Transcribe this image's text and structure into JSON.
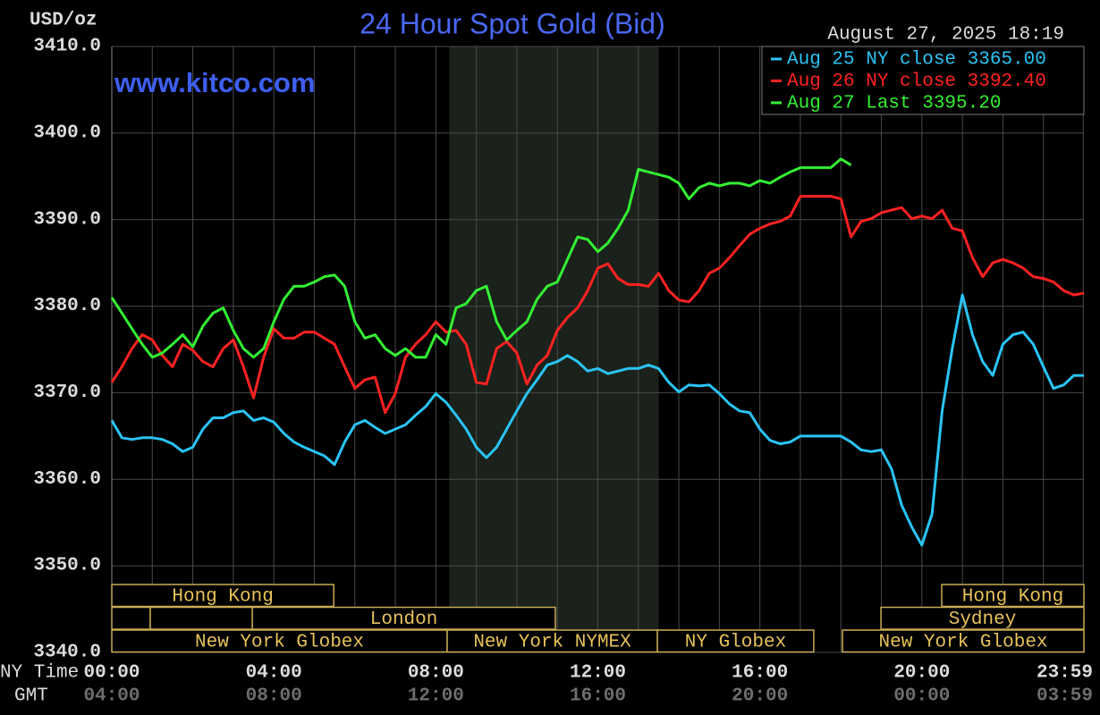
{
  "chart_data": {
    "type": "line",
    "title": "24 Hour Spot Gold (Bid)",
    "watermark": "www.kitco.com",
    "timestamp": "August 27, 2025 18:19",
    "ylabel": "USD/oz",
    "xlabel": "NY Time",
    "x2label": "GMT",
    "xlim": [
      0,
      24
    ],
    "ylim": [
      3340,
      3410
    ],
    "yticks": [
      {
        "value": 3340,
        "label": "3340.0"
      },
      {
        "value": 3350,
        "label": "3350.0"
      },
      {
        "value": 3360,
        "label": "3360.0"
      },
      {
        "value": 3370,
        "label": "3370.0"
      },
      {
        "value": 3380,
        "label": "3380.0"
      },
      {
        "value": 3390,
        "label": "3390.0"
      },
      {
        "value": 3400,
        "label": "3400.0"
      },
      {
        "value": 3410,
        "label": "3410.0"
      }
    ],
    "xticks": [
      {
        "value": 0,
        "label": "00:00"
      },
      {
        "value": 4,
        "label": "04:00"
      },
      {
        "value": 8,
        "label": "08:00"
      },
      {
        "value": 12,
        "label": "12:00"
      },
      {
        "value": 16,
        "label": "16:00"
      },
      {
        "value": 20,
        "label": "20:00"
      },
      {
        "value": 23.983,
        "label": "23:59"
      }
    ],
    "x2ticks": [
      {
        "value": 0,
        "label": "04:00"
      },
      {
        "value": 4,
        "label": "08:00"
      },
      {
        "value": 8,
        "label": "12:00"
      },
      {
        "value": 12,
        "label": "16:00"
      },
      {
        "value": 16,
        "label": "20:00"
      },
      {
        "value": 20,
        "label": "00:00"
      },
      {
        "value": 23.983,
        "label": "03:59"
      }
    ],
    "x_minor_ticks": [
      1,
      2,
      3,
      5,
      6,
      7,
      9,
      10,
      11,
      13,
      14,
      15,
      17,
      18,
      19,
      21,
      22,
      23
    ],
    "grid": true,
    "shaded_x": [
      8.33,
      13.5
    ],
    "legend": "top-right",
    "session_rows": [
      [
        {
          "label": "Hong Kong",
          "start": 0,
          "end": 5.48
        },
        {
          "label": "Hong Kong",
          "start": 20.49,
          "end": 24
        }
      ],
      [
        {
          "start": 0,
          "end": 0.95
        },
        {
          "start": 0.95,
          "end": 3.47
        },
        {
          "label": "London",
          "start": 3.47,
          "end": 10.95
        },
        {
          "label": "Sydney",
          "start": 18.99,
          "end": 24
        }
      ],
      [
        {
          "label": "New York Globex",
          "start": 0,
          "end": 8.28
        },
        {
          "label": "New York NYMEX",
          "start": 8.28,
          "end": 13.47
        },
        {
          "label": "NY Globex",
          "start": 13.47,
          "end": 17.33
        },
        {
          "label": "New York Globex",
          "start": 18.04,
          "end": 24
        }
      ]
    ],
    "x": [
      0,
      0.25,
      0.5,
      0.75,
      1,
      1.25,
      1.5,
      1.75,
      2,
      2.25,
      2.5,
      2.75,
      3,
      3.25,
      3.5,
      3.75,
      4,
      4.25,
      4.5,
      4.75,
      5,
      5.25,
      5.5,
      5.75,
      6,
      6.25,
      6.5,
      6.75,
      7,
      7.25,
      7.5,
      7.75,
      8,
      8.25,
      8.5,
      8.75,
      9,
      9.25,
      9.5,
      9.75,
      10,
      10.25,
      10.5,
      10.75,
      11,
      11.25,
      11.5,
      11.75,
      12,
      12.25,
      12.5,
      12.75,
      13,
      13.25,
      13.5,
      13.75,
      14,
      14.25,
      14.5,
      14.75,
      15,
      15.25,
      15.5,
      15.75,
      16,
      16.25,
      16.5,
      16.75,
      17,
      17.25,
      17.5,
      17.75,
      18,
      18.25,
      18.5,
      18.75,
      19,
      19.25,
      19.5,
      19.75,
      20,
      20.25,
      20.5,
      20.75,
      21,
      21.25,
      21.5,
      21.75,
      22,
      22.25,
      22.5,
      22.75,
      23,
      23.25,
      23.5,
      23.75,
      24
    ],
    "series": [
      {
        "name": "Aug 25 NY close 3365.00",
        "color": "#2ac4f4",
        "values": [
          3366.8,
          3364.8,
          3364.6,
          3364.8,
          3364.8,
          3364.6,
          3364.1,
          3363.2,
          3363.7,
          3365.8,
          3367.1,
          3367.1,
          3367.7,
          3367.9,
          3366.8,
          3367.1,
          3366.6,
          3365.3,
          3364.3,
          3363.7,
          3363.2,
          3362.7,
          3361.7,
          3364.3,
          3366.3,
          3366.8,
          3366.0,
          3365.3,
          3365.8,
          3366.3,
          3367.4,
          3368.4,
          3369.9,
          3368.9,
          3367.4,
          3365.8,
          3363.7,
          3362.5,
          3363.7,
          3365.8,
          3367.9,
          3369.9,
          3371.5,
          3373.2,
          3373.6,
          3374.3,
          3373.6,
          3372.5,
          3372.8,
          3372.2,
          3372.5,
          3372.8,
          3372.8,
          3373.2,
          3372.8,
          3371.2,
          3370.1,
          3370.9,
          3370.8,
          3370.9,
          3369.9,
          3368.7,
          3367.9,
          3367.7,
          3365.8,
          3364.5,
          3364.1,
          3364.3,
          3365.0,
          3365.0,
          3365.0,
          3365.0,
          3365.0,
          3364.3,
          3363.4,
          3363.2,
          3363.4,
          3361.2,
          3357.0,
          3354.5,
          3352.4,
          3356.0,
          3367.9,
          3375.1,
          3381.3,
          3376.7,
          3373.6,
          3372.0,
          3375.6,
          3376.7,
          3377.0,
          3375.6,
          3373.0,
          3370.5,
          3370.9,
          3372.0,
          3372.0
        ]
      },
      {
        "name": "Aug 26 NY close 3392.40",
        "color": "#ff2222",
        "values": [
          3371.2,
          3373.0,
          3375.1,
          3376.7,
          3376.1,
          3374.3,
          3373.0,
          3375.6,
          3374.9,
          3373.6,
          3373.0,
          3375.1,
          3376.1,
          3373.0,
          3369.4,
          3374.1,
          3377.4,
          3376.3,
          3376.3,
          3377.0,
          3377.0,
          3376.3,
          3375.6,
          3373.0,
          3370.5,
          3371.5,
          3371.8,
          3367.7,
          3369.9,
          3374.1,
          3375.6,
          3376.7,
          3378.2,
          3377.0,
          3377.2,
          3375.6,
          3371.2,
          3371.0,
          3375.1,
          3375.9,
          3374.6,
          3371.0,
          3373.2,
          3374.3,
          3377.2,
          3378.7,
          3379.8,
          3381.8,
          3384.4,
          3384.9,
          3383.2,
          3382.5,
          3382.5,
          3382.3,
          3383.8,
          3381.8,
          3380.7,
          3380.5,
          3381.8,
          3383.8,
          3384.4,
          3385.6,
          3387.0,
          3388.3,
          3389.0,
          3389.5,
          3389.8,
          3390.4,
          3392.7,
          3392.7,
          3392.7,
          3392.7,
          3392.4,
          3388.0,
          3389.8,
          3390.1,
          3390.8,
          3391.1,
          3391.4,
          3390.1,
          3390.4,
          3390.1,
          3391.1,
          3389.0,
          3388.7,
          3385.6,
          3383.4,
          3385.0,
          3385.4,
          3385.0,
          3384.4,
          3383.4,
          3383.2,
          3382.8,
          3381.8,
          3381.3,
          3381.5
        ]
      },
      {
        "name": "Aug 27 Last 3395.20",
        "color": "#33f033",
        "values": [
          3381.0,
          3379.2,
          3377.4,
          3375.6,
          3374.1,
          3374.6,
          3375.6,
          3376.7,
          3375.3,
          3377.7,
          3379.2,
          3379.8,
          3377.2,
          3375.1,
          3374.1,
          3375.1,
          3378.2,
          3380.8,
          3382.3,
          3382.3,
          3382.8,
          3383.4,
          3383.6,
          3382.3,
          3378.2,
          3376.3,
          3376.7,
          3375.1,
          3374.3,
          3375.1,
          3374.1,
          3374.1,
          3376.7,
          3375.6,
          3379.8,
          3380.3,
          3381.8,
          3382.3,
          3378.2,
          3376.1,
          3377.2,
          3378.2,
          3380.8,
          3382.3,
          3382.8,
          3385.4,
          3388.0,
          3387.7,
          3386.3,
          3387.3,
          3389.0,
          3391.1,
          3395.8,
          3395.5,
          3395.2,
          3394.9,
          3394.2,
          3392.4,
          3393.7,
          3394.2,
          3393.9,
          3394.2,
          3394.2,
          3393.9,
          3394.5,
          3394.2,
          3394.9,
          3395.5,
          3396.0,
          3396.0,
          3396.0,
          3396.0,
          3397.0,
          3396.3,
          null,
          null,
          null,
          null,
          null,
          null,
          null,
          null,
          null,
          null,
          null,
          null,
          null,
          null,
          null,
          null,
          null,
          null,
          null,
          null,
          null,
          null,
          null
        ]
      }
    ]
  }
}
